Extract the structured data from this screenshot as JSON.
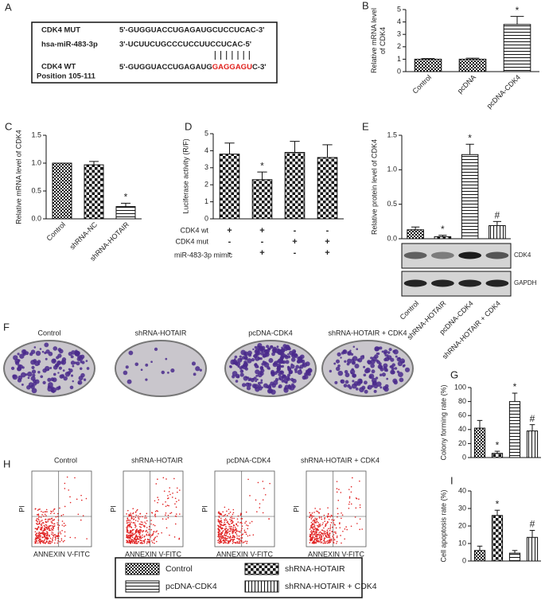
{
  "panel_a": {
    "panel": "A",
    "rows": [
      {
        "name": "CDK4 MUT",
        "sequence": "5'-GUGGUACCUGAGAUGCUCCUCAC-3'"
      },
      {
        "name": "hsa-miR-483-3p",
        "sequence": "3'-UCUUCUGCCCUCCUUCCUCAC-5'"
      }
    ],
    "wt": {
      "name": "CDK4 WT",
      "position": "Position 105-111",
      "sequence_start": "5'-GUGGUACCUGAGAUG",
      "seed": "GAGGAGU",
      "sequence_end": "C-3'"
    }
  },
  "panel_f": {
    "panel": "F",
    "labels": [
      "Control",
      "shRNA-HOTAIR",
      "pcDNA-CDK4",
      "shRNA-HOTAIR + CDK4"
    ]
  },
  "panel_h": {
    "panel": "H",
    "labels": [
      "Control",
      "shRNA-HOTAIR",
      "pcDNA-CDK4",
      "shRNA-HOTAIR + CDK4"
    ],
    "ylabel": "PI",
    "xlabel": "ANNEXIN V-FITC"
  },
  "legend": [
    {
      "label": "Control",
      "pattern": "checker"
    },
    {
      "label": "shRNA-HOTAIR",
      "pattern": "bigchecker"
    },
    {
      "label": "pcDNA-CDK4",
      "pattern": "hstripe"
    },
    {
      "label": "shRNA-HOTAIR + CDK4",
      "pattern": "vstripe"
    }
  ],
  "chart_data": [
    {
      "type": "bar",
      "panel": "B",
      "ylabel": [
        "Relative mRNA level",
        "of CDK4"
      ],
      "categories": [
        "Control",
        "pcDNA",
        "pcDNA-CDK4"
      ],
      "values": [
        1,
        1.0,
        3.8
      ],
      "errors": [
        0.05,
        0.08,
        0.65
      ],
      "annotations": [
        null,
        null,
        "*"
      ],
      "patterns": [
        "checker",
        "checker",
        "hstripe"
      ],
      "ylim": [
        0,
        5
      ],
      "yticks": [
        0,
        1,
        2,
        3,
        4,
        5
      ]
    },
    {
      "type": "bar",
      "panel": "C",
      "ylabel": [
        "Relative mRNA level of CDK4"
      ],
      "categories": [
        "Control",
        "shRNA-NC",
        "shRNA-HOTAIR"
      ],
      "values": [
        1.0,
        0.97,
        0.22
      ],
      "errors": [
        0,
        0.06,
        0.06
      ],
      "annotations": [
        null,
        null,
        "*"
      ],
      "patterns": [
        "checker",
        "bigchecker",
        "hstripe"
      ],
      "ylim": [
        0,
        1.5
      ],
      "yticks": [
        {
          "value": 0,
          "label": "0.0"
        },
        {
          "value": 0.5,
          "label": "0.5"
        },
        {
          "value": 1,
          "label": "1.0"
        },
        {
          "value": 1.5,
          "label": "1.5"
        }
      ]
    },
    {
      "type": "bar",
      "panel": "D",
      "ylabel": [
        "Luciferase activity (R/F)"
      ],
      "values": [
        3.8,
        2.3,
        3.9,
        3.6
      ],
      "errors": [
        0.65,
        0.45,
        0.65,
        0.75
      ],
      "annotations": [
        null,
        "*",
        null,
        null
      ],
      "patterns": [
        "bigchecker",
        "bigchecker",
        "bigchecker",
        "bigchecker"
      ],
      "conditions": [
        {
          "name": "CDK4 wt",
          "signs": [
            "+",
            "+",
            "-",
            "-"
          ]
        },
        {
          "name": "CDK4 mut",
          "signs": [
            "-",
            "-",
            "+",
            "+"
          ]
        },
        {
          "name": "miR-483-3p mimic",
          "signs": [
            "-",
            "+",
            "-",
            "+"
          ]
        }
      ],
      "ylim": [
        0,
        5
      ],
      "yticks": [
        0,
        1,
        2,
        3,
        4,
        5
      ]
    },
    {
      "type": "bar",
      "panel": "E",
      "ylabel": [
        "Relative protein level of CDK4"
      ],
      "categories": [
        "Control",
        "shRNA-HOTAIR",
        "pcDNA-CDK4",
        "shRNA-HOTAIR + CDK4"
      ],
      "values": [
        0.13,
        0.03,
        1.22,
        0.19
      ],
      "errors": [
        0.04,
        0.02,
        0.15,
        0.06
      ],
      "annotations": [
        null,
        "*",
        "*",
        "#"
      ],
      "patterns": [
        "checker",
        "bigchecker",
        "hstripe",
        "vstripe"
      ],
      "blots": [
        "CDK4",
        "GAPDH"
      ],
      "ylim": [
        0,
        1.5
      ],
      "yticks": [
        {
          "value": 0,
          "label": "0.0"
        },
        {
          "value": 0.5,
          "label": "0.5"
        },
        {
          "value": 1,
          "label": "1.0"
        },
        {
          "value": 1.5,
          "label": "1.5"
        }
      ]
    },
    {
      "type": "bar",
      "panel": "G",
      "ylabel": [
        "Colony forming rate (%)"
      ],
      "values": [
        42,
        6,
        80,
        38
      ],
      "errors": [
        11,
        3,
        12,
        9
      ],
      "annotations": [
        null,
        "*",
        "*",
        "#"
      ],
      "patterns": [
        "checker",
        "bigchecker",
        "hstripe",
        "vstripe"
      ],
      "ylim": [
        0,
        100
      ],
      "yticks": [
        0,
        20,
        40,
        60,
        80,
        100
      ]
    },
    {
      "type": "bar",
      "panel": "I",
      "ylabel": [
        "Cell apoptosis rate (%)"
      ],
      "values": [
        6,
        26,
        4.5,
        13.5
      ],
      "errors": [
        2.5,
        3,
        1.5,
        4
      ],
      "annotations": [
        null,
        "*",
        null,
        "#"
      ],
      "patterns": [
        "checker",
        "bigchecker",
        "hstripe",
        "vstripe"
      ],
      "ylim": [
        0,
        40
      ],
      "yticks": [
        0,
        10,
        20,
        30,
        40
      ]
    }
  ]
}
